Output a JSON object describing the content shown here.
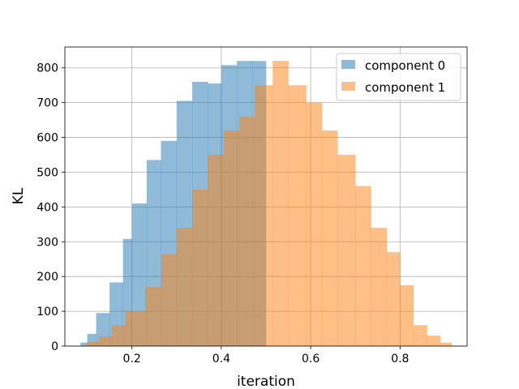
{
  "chart_data": {
    "type": "histogram",
    "xlabel": "iteration",
    "ylabel": "KL",
    "xlim": [
      0.05,
      0.95
    ],
    "ylim": [
      0,
      860
    ],
    "xticks": [
      "0.2",
      "0.4",
      "0.6",
      "0.8"
    ],
    "yticks": [
      "0",
      "100",
      "200",
      "300",
      "400",
      "500",
      "600",
      "700",
      "800"
    ],
    "grid": true,
    "legend_position": "top-right",
    "series": [
      {
        "name": "component 0",
        "color": "#1f77b4",
        "alpha": 0.5,
        "bin_edges": [
          0.085,
          0.1,
          0.12,
          0.15,
          0.18,
          0.2,
          0.233,
          0.265,
          0.3,
          0.335,
          0.37,
          0.4,
          0.435,
          0.47,
          0.5
        ],
        "counts": [
          10,
          35,
          95,
          183,
          308,
          410,
          535,
          590,
          705,
          760,
          755,
          808,
          820,
          820
        ]
      },
      {
        "name": "component 1",
        "color": "#ff7f0e",
        "alpha": 0.5,
        "bin_edges": [
          0.1,
          0.125,
          0.155,
          0.185,
          0.23,
          0.266,
          0.3,
          0.335,
          0.37,
          0.405,
          0.44,
          0.475,
          0.515,
          0.55,
          0.59,
          0.625,
          0.66,
          0.7,
          0.735,
          0.77,
          0.8,
          0.83,
          0.86,
          0.89,
          0.915
        ],
        "counts": [
          12,
          28,
          60,
          100,
          170,
          265,
          340,
          450,
          550,
          620,
          660,
          750,
          820,
          750,
          700,
          620,
          550,
          460,
          340,
          270,
          175,
          60,
          30,
          10
        ]
      }
    ]
  }
}
